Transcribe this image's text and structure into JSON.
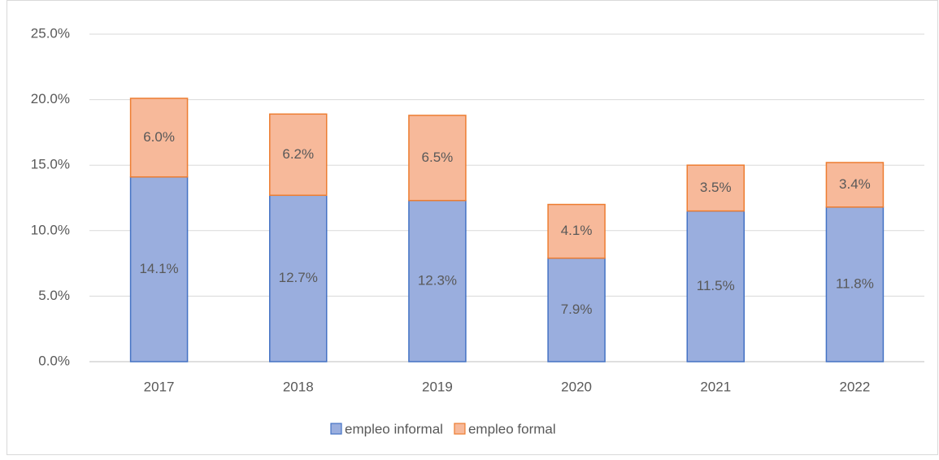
{
  "chart_data": {
    "type": "stacked_bar",
    "categories": [
      "2017",
      "2018",
      "2019",
      "2020",
      "2021",
      "2022"
    ],
    "series": [
      {
        "name": "empleo informal",
        "color": "#9aaede",
        "edge_color": "#4472c4",
        "values": [
          14.1,
          12.7,
          12.3,
          7.9,
          11.5,
          11.8
        ],
        "value_labels": [
          "14.1%",
          "12.7%",
          "12.3%",
          "7.9%",
          "11.5%",
          "11.8%"
        ]
      },
      {
        "name": "empleo formal",
        "color": "#f7b99a",
        "edge_color": "#ed7d31",
        "values": [
          6.0,
          6.2,
          6.5,
          4.1,
          3.5,
          3.4
        ],
        "value_labels": [
          "6.0%",
          "6.2%",
          "6.5%",
          "4.1%",
          "3.5%",
          "3.4%"
        ]
      }
    ],
    "ylim": [
      0,
      25
    ],
    "yticks": [
      {
        "value": 0,
        "label": "0.0%"
      },
      {
        "value": 5,
        "label": "5.0%"
      },
      {
        "value": 10,
        "label": "10.0%"
      },
      {
        "value": 15,
        "label": "15.0%"
      },
      {
        "value": 20,
        "label": "20.0%"
      },
      {
        "value": 25,
        "label": "25.0%"
      }
    ],
    "grid": true,
    "legend": "bottom"
  }
}
